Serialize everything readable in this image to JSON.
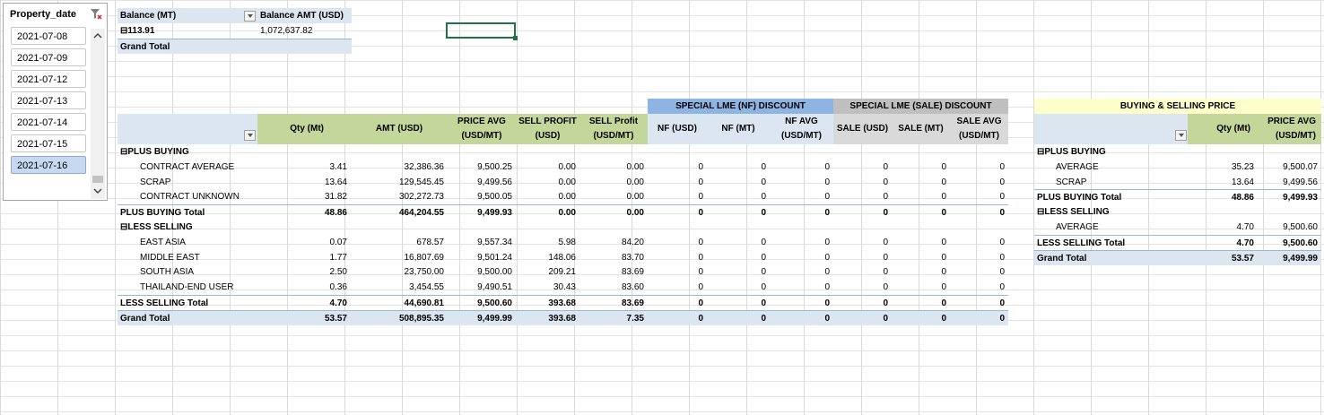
{
  "slicer": {
    "title": "Property_date",
    "items": [
      "2021-07-08",
      "2021-07-09",
      "2021-07-12",
      "2021-07-13",
      "2021-07-14",
      "2021-07-15",
      "2021-07-16"
    ],
    "selected_index": 6
  },
  "balance": {
    "h1": "Balance (MT)",
    "h2": "Balance AMT (USD)",
    "row_label": "113.91",
    "row_value": "1,072,637.82",
    "grand": "Grand Total"
  },
  "sections": {
    "nf": "SPECIAL LME (NF) DISCOUNT",
    "sale": "SPECIAL LME (SALE) DISCOUNT",
    "bsp": "BUYING & SELLING PRICE"
  },
  "main": {
    "headers": [
      "Qty (Mt)",
      "AMT (USD)",
      "PRICE AVG (USD/MT)",
      "SELL PROFIT (USD)",
      "SELL Profit (USD/MT)",
      "NF (USD)",
      "NF (MT)",
      "NF AVG (USD/MT)",
      "SALE (USD)",
      "SALE (MT)",
      "SALE AVG (USD/MT)"
    ],
    "rows": [
      {
        "label": "PLUS BUYING",
        "type": "group",
        "v": [
          "",
          "",
          "",
          "",
          "",
          "",
          "",
          "",
          "",
          "",
          ""
        ]
      },
      {
        "label": "CONTRACT AVERAGE",
        "type": "item",
        "v": [
          "3.41",
          "32,386.36",
          "9,500.25",
          "0.00",
          "0.00",
          "0",
          "0",
          "0",
          "0",
          "0",
          "0"
        ]
      },
      {
        "label": "SCRAP",
        "type": "item",
        "v": [
          "13.64",
          "129,545.45",
          "9,499.56",
          "0.00",
          "0.00",
          "0",
          "0",
          "0",
          "0",
          "0",
          "0"
        ]
      },
      {
        "label": "CONTRACT UNKNOWN",
        "type": "item",
        "v": [
          "31.82",
          "302,272.73",
          "9,500.05",
          "0.00",
          "0.00",
          "0",
          "0",
          "0",
          "0",
          "0",
          "0"
        ]
      },
      {
        "label": "PLUS BUYING Total",
        "type": "total",
        "v": [
          "48.86",
          "464,204.55",
          "9,499.93",
          "0.00",
          "0.00",
          "0",
          "0",
          "0",
          "0",
          "0",
          "0"
        ]
      },
      {
        "label": "LESS SELLING",
        "type": "group",
        "v": [
          "",
          "",
          "",
          "",
          "",
          "",
          "",
          "",
          "",
          "",
          ""
        ]
      },
      {
        "label": "EAST ASIA",
        "type": "item",
        "v": [
          "0.07",
          "678.57",
          "9,557.34",
          "5.98",
          "84.20",
          "0",
          "0",
          "0",
          "0",
          "0",
          "0"
        ]
      },
      {
        "label": "MIDDLE EAST",
        "type": "item",
        "v": [
          "1.77",
          "16,807.69",
          "9,501.24",
          "148.06",
          "83.70",
          "0",
          "0",
          "0",
          "0",
          "0",
          "0"
        ]
      },
      {
        "label": "SOUTH ASIA",
        "type": "item",
        "v": [
          "2.50",
          "23,750.00",
          "9,500.00",
          "209.21",
          "83.69",
          "0",
          "0",
          "0",
          "0",
          "0",
          "0"
        ]
      },
      {
        "label": "THAILAND-END USER",
        "type": "item",
        "v": [
          "0.36",
          "3,454.55",
          "9,490.51",
          "30.43",
          "83.60",
          "0",
          "0",
          "0",
          "0",
          "0",
          "0"
        ]
      },
      {
        "label": "LESS SELLING Total",
        "type": "total",
        "v": [
          "4.70",
          "44,690.81",
          "9,500.60",
          "393.68",
          "83.69",
          "0",
          "0",
          "0",
          "0",
          "0",
          "0"
        ]
      },
      {
        "label": "Grand Total",
        "type": "grand",
        "v": [
          "53.57",
          "508,895.35",
          "9,499.99",
          "393.68",
          "7.35",
          "0",
          "0",
          "0",
          "0",
          "0",
          "0"
        ]
      }
    ]
  },
  "right": {
    "headers": [
      "Qty (Mt)",
      "PRICE AVG (USD/MT)"
    ],
    "rows": [
      {
        "label": "PLUS BUYING",
        "type": "group",
        "v": [
          "",
          ""
        ]
      },
      {
        "label": "AVERAGE",
        "type": "item",
        "v": [
          "35.23",
          "9,500.07"
        ]
      },
      {
        "label": "SCRAP",
        "type": "item",
        "v": [
          "13.64",
          "9,499.56"
        ]
      },
      {
        "label": "PLUS BUYING Total",
        "type": "total",
        "v": [
          "48.86",
          "9,499.93"
        ]
      },
      {
        "label": "LESS SELLING",
        "type": "group",
        "v": [
          "",
          ""
        ]
      },
      {
        "label": "AVERAGE",
        "type": "item",
        "v": [
          "4.70",
          "9,500.60"
        ]
      },
      {
        "label": "LESS SELLING Total",
        "type": "total",
        "v": [
          "4.70",
          "9,500.60"
        ]
      },
      {
        "label": "Grand Total",
        "type": "grand",
        "v": [
          "53.57",
          "9,499.99"
        ]
      }
    ]
  },
  "colors": {
    "header_blue": "#dce6f1",
    "header_green": "#c4d79b",
    "nf_blue": "#8db4e2",
    "sale_gray": "#bfbfbf",
    "sale_gray_light": "#d9d9d9",
    "bsp_yellow": "#ffffcc",
    "grand_bg": "#dce6f1",
    "selection": "#217346"
  }
}
